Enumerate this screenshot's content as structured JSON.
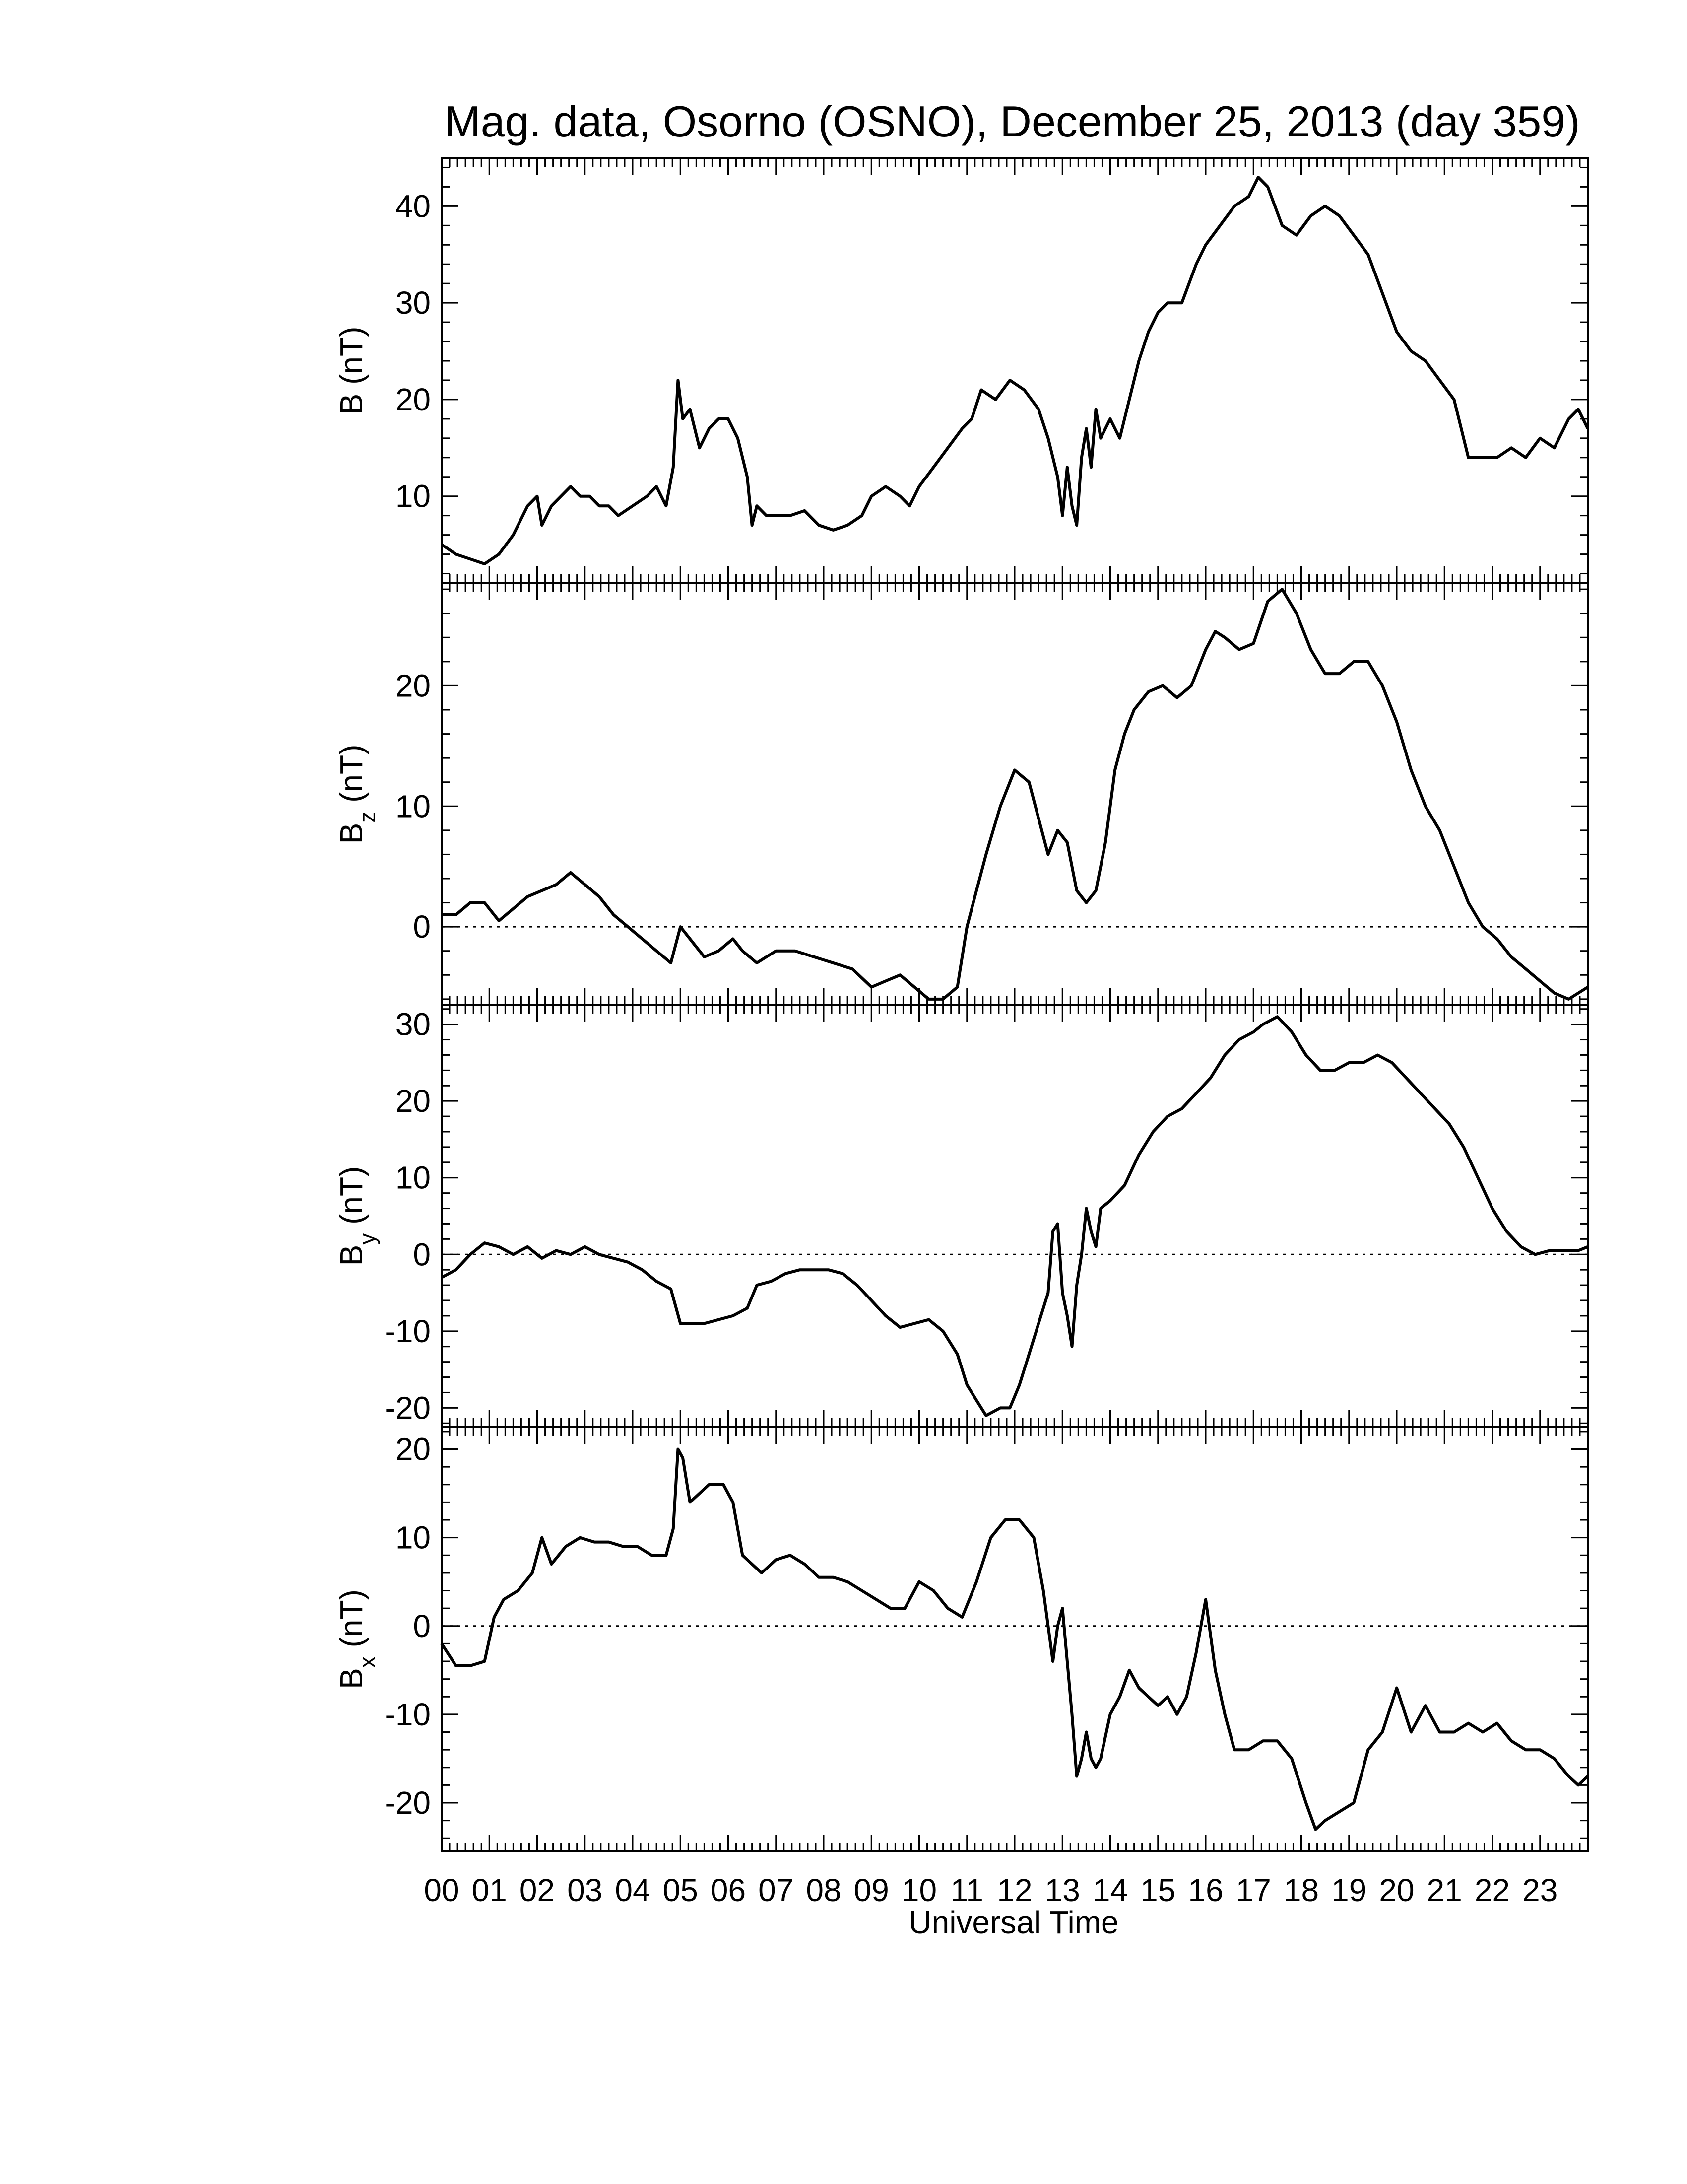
{
  "title": "Mag. data, Osorno (OSNO), December 25, 2013 (day 359)",
  "xlabel": "Universal Time",
  "x_tick_labels": [
    "00",
    "01",
    "02",
    "03",
    "04",
    "05",
    "06",
    "07",
    "08",
    "09",
    "10",
    "11",
    "12",
    "13",
    "14",
    "15",
    "16",
    "17",
    "18",
    "19",
    "20",
    "21",
    "22",
    "23"
  ],
  "colors": {
    "line": "#000000",
    "zero_line": "#000000",
    "background": "#ffffff"
  },
  "chart_data": [
    {
      "type": "line",
      "panel": "B",
      "ylabel": "B (nT)",
      "ylabel_main": "B",
      "ylabel_sub": "",
      "ylabel_unit": "(nT)",
      "ylim": [
        1,
        45
      ],
      "yticks": [
        10,
        20,
        30,
        40
      ],
      "zero_line": false,
      "xlim": [
        0,
        24
      ],
      "x": [
        0,
        0.3,
        0.6,
        0.9,
        1.2,
        1.5,
        1.8,
        2.0,
        2.1,
        2.3,
        2.5,
        2.7,
        2.9,
        3.1,
        3.3,
        3.5,
        3.7,
        4.0,
        4.3,
        4.5,
        4.7,
        4.85,
        4.95,
        5.05,
        5.2,
        5.4,
        5.6,
        5.8,
        6.0,
        6.2,
        6.4,
        6.5,
        6.6,
        6.8,
        7.0,
        7.3,
        7.6,
        7.9,
        8.2,
        8.5,
        8.8,
        9.0,
        9.3,
        9.6,
        9.8,
        10.0,
        10.3,
        10.6,
        10.9,
        11.1,
        11.3,
        11.6,
        11.9,
        12.2,
        12.5,
        12.7,
        12.9,
        13.0,
        13.1,
        13.2,
        13.3,
        13.4,
        13.5,
        13.6,
        13.7,
        13.8,
        14.0,
        14.2,
        14.4,
        14.6,
        14.8,
        15.0,
        15.2,
        15.5,
        15.8,
        16.0,
        16.3,
        16.6,
        16.9,
        17.1,
        17.3,
        17.6,
        17.9,
        18.2,
        18.5,
        18.8,
        19.1,
        19.4,
        19.7,
        20.0,
        20.3,
        20.6,
        20.9,
        21.2,
        21.5,
        21.8,
        22.1,
        22.4,
        22.7,
        23.0,
        23.3,
        23.6,
        23.8,
        24.0
      ],
      "values": [
        5,
        4,
        3.5,
        3,
        4,
        6,
        9,
        10,
        7,
        9,
        10,
        11,
        10,
        10,
        9,
        9,
        8,
        9,
        10,
        11,
        9,
        13,
        22,
        18,
        19,
        15,
        17,
        18,
        18,
        16,
        12,
        7,
        9,
        8,
        8,
        8,
        8.5,
        7,
        6.5,
        7,
        8,
        10,
        11,
        10,
        9,
        11,
        13,
        15,
        17,
        18,
        21,
        20,
        22,
        21,
        19,
        16,
        12,
        8,
        13,
        9,
        7,
        14,
        17,
        13,
        19,
        16,
        18,
        16,
        20,
        24,
        27,
        29,
        30,
        30,
        34,
        36,
        38,
        40,
        41,
        43,
        42,
        38,
        37,
        39,
        40,
        39,
        37,
        35,
        31,
        27,
        25,
        24,
        22,
        20,
        14,
        14,
        14,
        15,
        14,
        16,
        15,
        18,
        19,
        17
      ]
    },
    {
      "type": "line",
      "panel": "Bz",
      "ylabel": "Bz (nT)",
      "ylabel_main": "B",
      "ylabel_sub": "z",
      "ylabel_unit": "(nT)",
      "ylim": [
        -6.5,
        28.5
      ],
      "yticks": [
        0,
        10,
        20
      ],
      "zero_line": true,
      "xlim": [
        0,
        24
      ],
      "x": [
        0,
        0.3,
        0.6,
        0.9,
        1.2,
        1.5,
        1.8,
        2.1,
        2.4,
        2.7,
        3.0,
        3.3,
        3.6,
        3.9,
        4.2,
        4.5,
        4.8,
        5.0,
        5.2,
        5.5,
        5.8,
        6.1,
        6.3,
        6.6,
        7.0,
        7.4,
        7.8,
        8.2,
        8.6,
        9.0,
        9.3,
        9.6,
        9.9,
        10.2,
        10.5,
        10.8,
        11.0,
        11.2,
        11.4,
        11.7,
        12.0,
        12.3,
        12.5,
        12.7,
        12.9,
        13.1,
        13.3,
        13.5,
        13.7,
        13.9,
        14.1,
        14.3,
        14.5,
        14.8,
        15.1,
        15.4,
        15.7,
        16.0,
        16.2,
        16.4,
        16.7,
        17.0,
        17.3,
        17.6,
        17.9,
        18.2,
        18.5,
        18.8,
        19.1,
        19.4,
        19.7,
        20.0,
        20.3,
        20.6,
        20.9,
        21.2,
        21.5,
        21.8,
        22.1,
        22.4,
        22.7,
        23.0,
        23.3,
        23.6,
        24.0
      ],
      "values": [
        1,
        1,
        2,
        2,
        0.5,
        1.5,
        2.5,
        3,
        3.5,
        4.5,
        3.5,
        2.5,
        1,
        0,
        -1,
        -2,
        -3,
        0,
        -1,
        -2.5,
        -2,
        -1,
        -2,
        -3,
        -2,
        -2,
        -2.5,
        -3,
        -3.5,
        -5,
        -4.5,
        -4,
        -5,
        -6,
        -6,
        -5,
        0,
        3,
        6,
        10,
        13,
        12,
        9,
        6,
        8,
        7,
        3,
        2,
        3,
        7,
        13,
        16,
        18,
        19.5,
        20,
        19,
        20,
        23,
        24.5,
        24,
        23,
        23.5,
        27,
        28,
        26,
        23,
        21,
        21,
        22,
        22,
        20,
        17,
        13,
        10,
        8,
        5,
        2,
        0,
        -1,
        -2.5,
        -3.5,
        -4.5,
        -5.5,
        -6,
        -5
      ]
    },
    {
      "type": "line",
      "panel": "By",
      "ylabel": "By (nT)",
      "ylabel_main": "B",
      "ylabel_sub": "y",
      "ylabel_unit": "(nT)",
      "ylim": [
        -22.5,
        32.5
      ],
      "yticks": [
        -20,
        -10,
        0,
        10,
        20,
        30
      ],
      "zero_line": true,
      "xlim": [
        0,
        24
      ],
      "x": [
        0,
        0.3,
        0.6,
        0.9,
        1.2,
        1.5,
        1.8,
        2.1,
        2.4,
        2.7,
        3.0,
        3.3,
        3.6,
        3.9,
        4.2,
        4.5,
        4.8,
        5.0,
        5.2,
        5.5,
        5.8,
        6.1,
        6.4,
        6.6,
        6.9,
        7.2,
        7.5,
        7.8,
        8.1,
        8.4,
        8.7,
        9.0,
        9.3,
        9.6,
        9.9,
        10.2,
        10.5,
        10.8,
        11.0,
        11.2,
        11.4,
        11.7,
        11.9,
        12.1,
        12.3,
        12.5,
        12.6,
        12.7,
        12.8,
        12.9,
        13.0,
        13.1,
        13.2,
        13.3,
        13.4,
        13.5,
        13.6,
        13.7,
        13.8,
        14.0,
        14.3,
        14.6,
        14.9,
        15.2,
        15.5,
        15.8,
        16.1,
        16.4,
        16.7,
        17.0,
        17.2,
        17.5,
        17.8,
        18.1,
        18.4,
        18.7,
        19.0,
        19.3,
        19.6,
        19.9,
        20.2,
        20.5,
        20.8,
        21.1,
        21.4,
        21.7,
        22.0,
        22.3,
        22.6,
        22.9,
        23.2,
        23.5,
        23.8,
        24.0
      ],
      "values": [
        -3,
        -2,
        0,
        1.5,
        1,
        0,
        1,
        -0.5,
        0.5,
        0,
        1,
        0,
        -0.5,
        -1,
        -2,
        -3.5,
        -4.5,
        -9,
        -9,
        -9,
        -8.5,
        -8,
        -7,
        -4,
        -3.5,
        -2.5,
        -2,
        -2,
        -2,
        -2.5,
        -4,
        -6,
        -8,
        -9.5,
        -9,
        -8.5,
        -10,
        -13,
        -17,
        -19,
        -21,
        -20,
        -20,
        -17,
        -13,
        -9,
        -7,
        -5,
        3,
        4,
        -5,
        -8,
        -12,
        -4,
        0,
        6,
        3,
        1,
        6,
        7,
        9,
        13,
        16,
        18,
        19,
        21,
        23,
        26,
        28,
        29,
        30,
        31,
        29,
        26,
        24,
        24,
        25,
        25,
        26,
        25,
        23,
        21,
        19,
        17,
        14,
        10,
        6,
        3,
        1,
        0,
        0.5,
        0.5,
        0.5,
        1
      ]
    },
    {
      "type": "line",
      "panel": "Bx",
      "ylabel": "Bx (nT)",
      "ylabel_main": "B",
      "ylabel_sub": "x",
      "ylabel_unit": "(nT)",
      "ylim": [
        -25.5,
        22.5
      ],
      "yticks": [
        -20,
        -10,
        0,
        10,
        20
      ],
      "zero_line": true,
      "xlim": [
        0,
        24
      ],
      "x": [
        0,
        0.3,
        0.6,
        0.9,
        1.1,
        1.3,
        1.6,
        1.9,
        2.1,
        2.3,
        2.6,
        2.9,
        3.2,
        3.5,
        3.8,
        4.1,
        4.4,
        4.7,
        4.85,
        4.95,
        5.05,
        5.2,
        5.4,
        5.6,
        5.9,
        6.1,
        6.3,
        6.5,
        6.7,
        7.0,
        7.3,
        7.6,
        7.9,
        8.2,
        8.5,
        8.8,
        9.1,
        9.4,
        9.7,
        10.0,
        10.3,
        10.6,
        10.9,
        11.2,
        11.5,
        11.8,
        12.1,
        12.4,
        12.6,
        12.8,
        12.9,
        13.0,
        13.1,
        13.2,
        13.3,
        13.4,
        13.5,
        13.6,
        13.7,
        13.8,
        14.0,
        14.2,
        14.4,
        14.6,
        14.8,
        15.0,
        15.2,
        15.4,
        15.6,
        15.8,
        16.0,
        16.2,
        16.4,
        16.6,
        16.9,
        17.2,
        17.5,
        17.8,
        18.1,
        18.3,
        18.5,
        18.8,
        19.1,
        19.4,
        19.7,
        20.0,
        20.3,
        20.6,
        20.9,
        21.2,
        21.5,
        21.8,
        22.1,
        22.4,
        22.7,
        23.0,
        23.3,
        23.6,
        23.8,
        24.0
      ],
      "values": [
        -2,
        -4.5,
        -4.5,
        -4,
        1,
        3,
        4,
        6,
        10,
        7,
        9,
        10,
        9.5,
        9.5,
        9,
        9,
        8,
        8,
        11,
        20,
        19,
        14,
        15,
        16,
        16,
        14,
        8,
        7,
        6,
        7.5,
        8,
        7,
        5.5,
        5.5,
        5,
        4,
        3,
        2,
        2,
        5,
        4,
        2,
        1,
        5,
        10,
        12,
        12,
        10,
        4,
        -4,
        0,
        2,
        -4,
        -10,
        -17,
        -15,
        -12,
        -15,
        -16,
        -15,
        -10,
        -8,
        -5,
        -7,
        -8,
        -9,
        -8,
        -10,
        -8,
        -3,
        3,
        -5,
        -10,
        -14,
        -14,
        -13,
        -13,
        -15,
        -20,
        -23,
        -22,
        -21,
        -20,
        -14,
        -12,
        -7,
        -12,
        -9,
        -12,
        -12,
        -11,
        -12,
        -11,
        -13,
        -14,
        -14,
        -15,
        -17,
        -18,
        -17
      ]
    }
  ]
}
